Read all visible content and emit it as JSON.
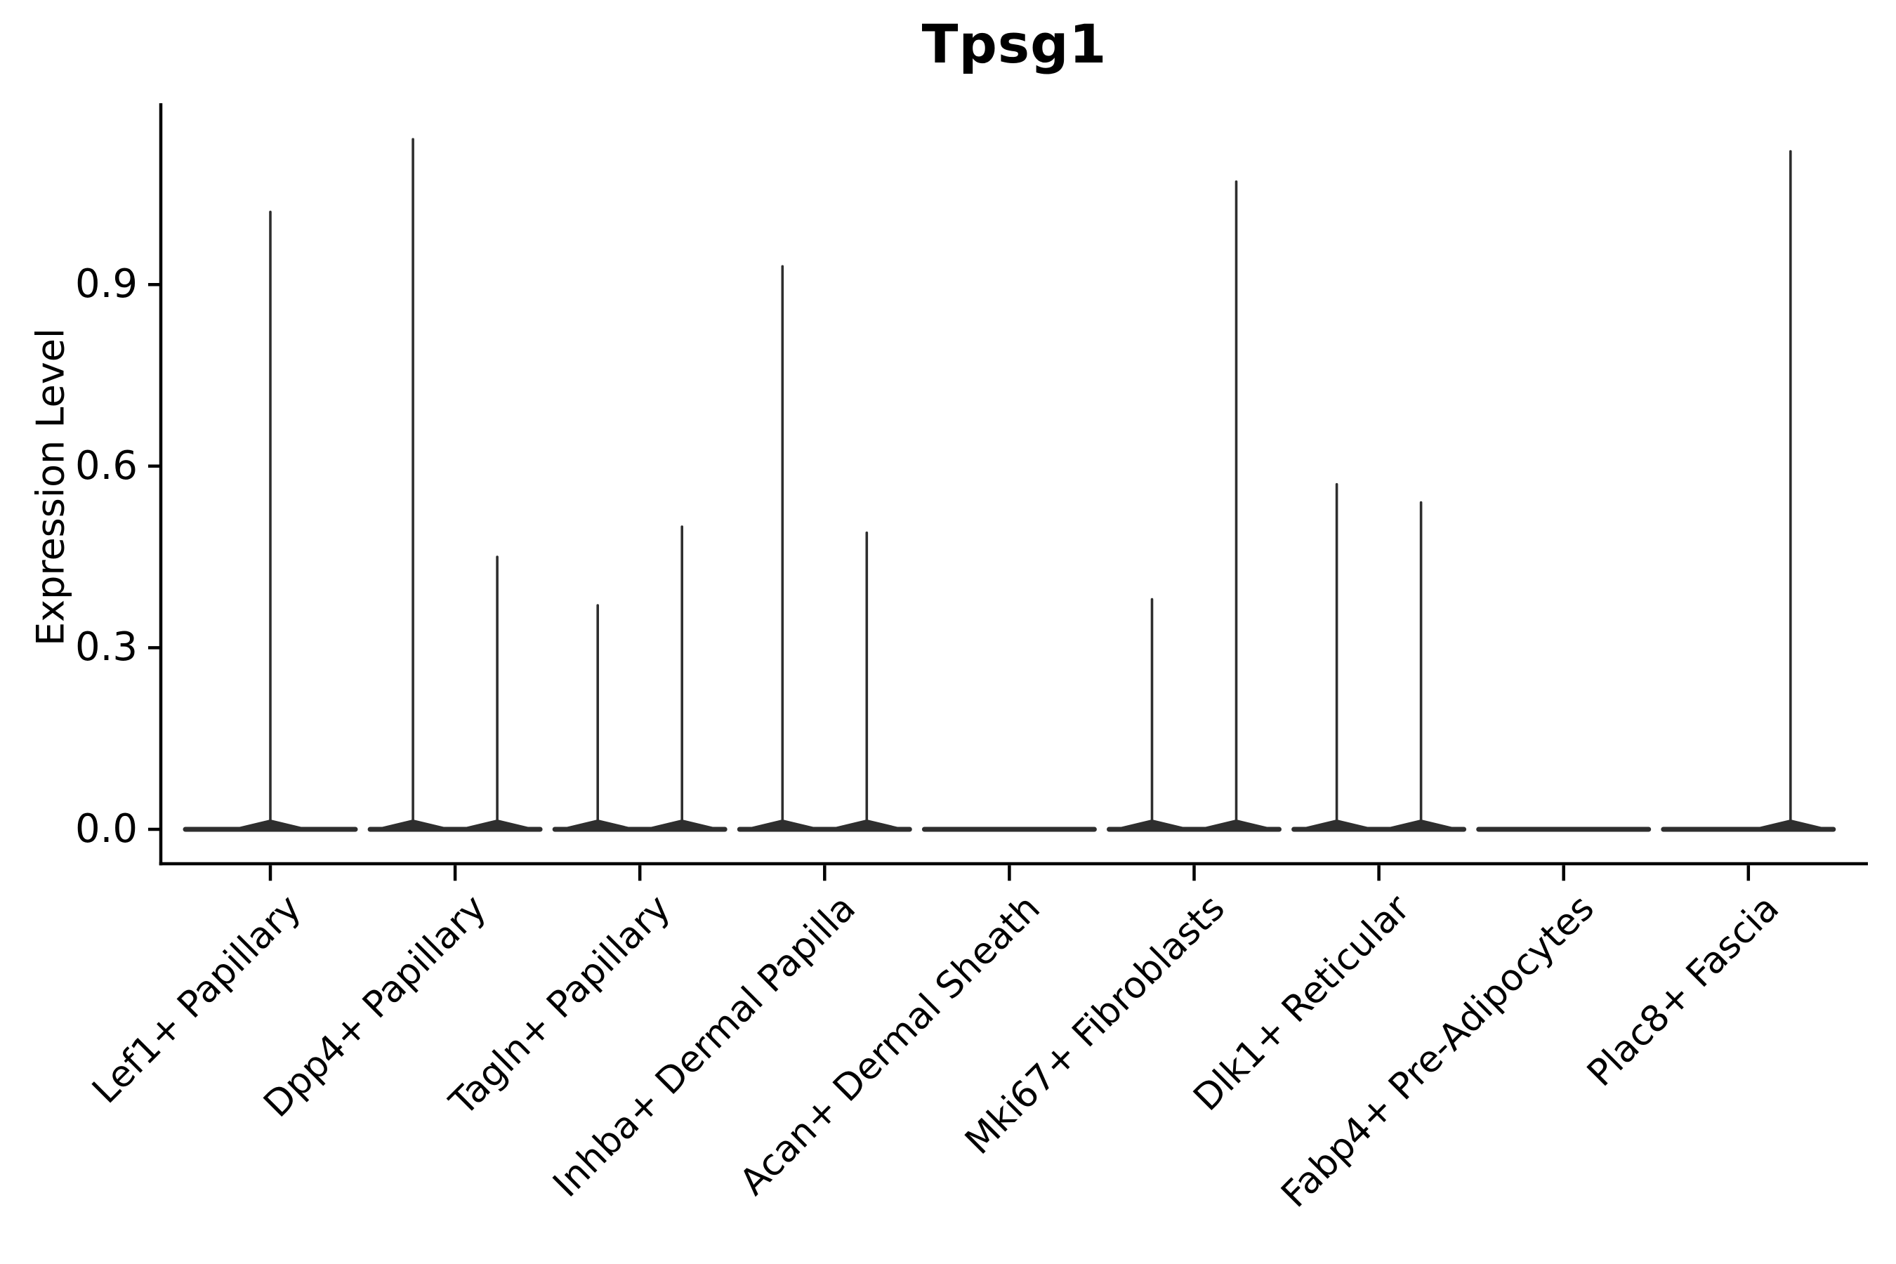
{
  "chart_data": {
    "type": "violin",
    "title": "Tpsg1",
    "ylabel": "Expression Level",
    "xlabel": "",
    "ytick_labels": [
      "0.0",
      "0.3",
      "0.6",
      "0.9"
    ],
    "ytick_values": [
      0.0,
      0.3,
      0.6,
      0.9
    ],
    "ylim": [
      -0.06,
      1.2
    ],
    "grid": false,
    "legend": "none",
    "categories": [
      "Lef1+ Papillary",
      "Dpp4+ Papillary",
      "Tagln+ Papillary",
      "Inhba+ Dermal Papilla",
      "Acan+ Dermal Sheath",
      "Mki67+ Fibroblasts",
      "Dlk1+ Reticular",
      "Fabp4+ Pre-Adipocytes",
      "Plac8+ Fascia"
    ],
    "violins": [
      {
        "category": "Lef1+ Papillary",
        "baseline_value": 0.0,
        "spikes": [
          {
            "side": "center",
            "max": 1.02
          }
        ]
      },
      {
        "category": "Dpp4+ Papillary",
        "baseline_value": 0.0,
        "spikes": [
          {
            "side": "left",
            "max": 1.14
          },
          {
            "side": "right",
            "max": 0.45
          }
        ]
      },
      {
        "category": "Tagln+ Papillary",
        "baseline_value": 0.0,
        "spikes": [
          {
            "side": "left",
            "max": 0.37
          },
          {
            "side": "right",
            "max": 0.5
          }
        ]
      },
      {
        "category": "Inhba+ Dermal Papilla",
        "baseline_value": 0.0,
        "spikes": [
          {
            "side": "left",
            "max": 0.93
          },
          {
            "side": "right",
            "max": 0.49
          }
        ]
      },
      {
        "category": "Acan+ Dermal Sheath",
        "baseline_value": 0.0,
        "spikes": []
      },
      {
        "category": "Mki67+ Fibroblasts",
        "baseline_value": 0.0,
        "spikes": [
          {
            "side": "left",
            "max": 0.38
          },
          {
            "side": "right",
            "max": 1.07
          }
        ]
      },
      {
        "category": "Dlk1+ Reticular",
        "baseline_value": 0.0,
        "spikes": [
          {
            "side": "left",
            "max": 0.57
          },
          {
            "side": "right",
            "max": 0.54
          }
        ]
      },
      {
        "category": "Fabp4+ Pre-Adipocytes",
        "baseline_value": 0.0,
        "spikes": []
      },
      {
        "category": "Plac8+ Fascia",
        "baseline_value": 0.0,
        "spikes": [
          {
            "side": "right",
            "max": 1.12
          }
        ]
      }
    ],
    "colors": {
      "violin_line": "#2e2e2e",
      "axis": "#000000",
      "text": "#000000",
      "background": "#ffffff"
    }
  }
}
